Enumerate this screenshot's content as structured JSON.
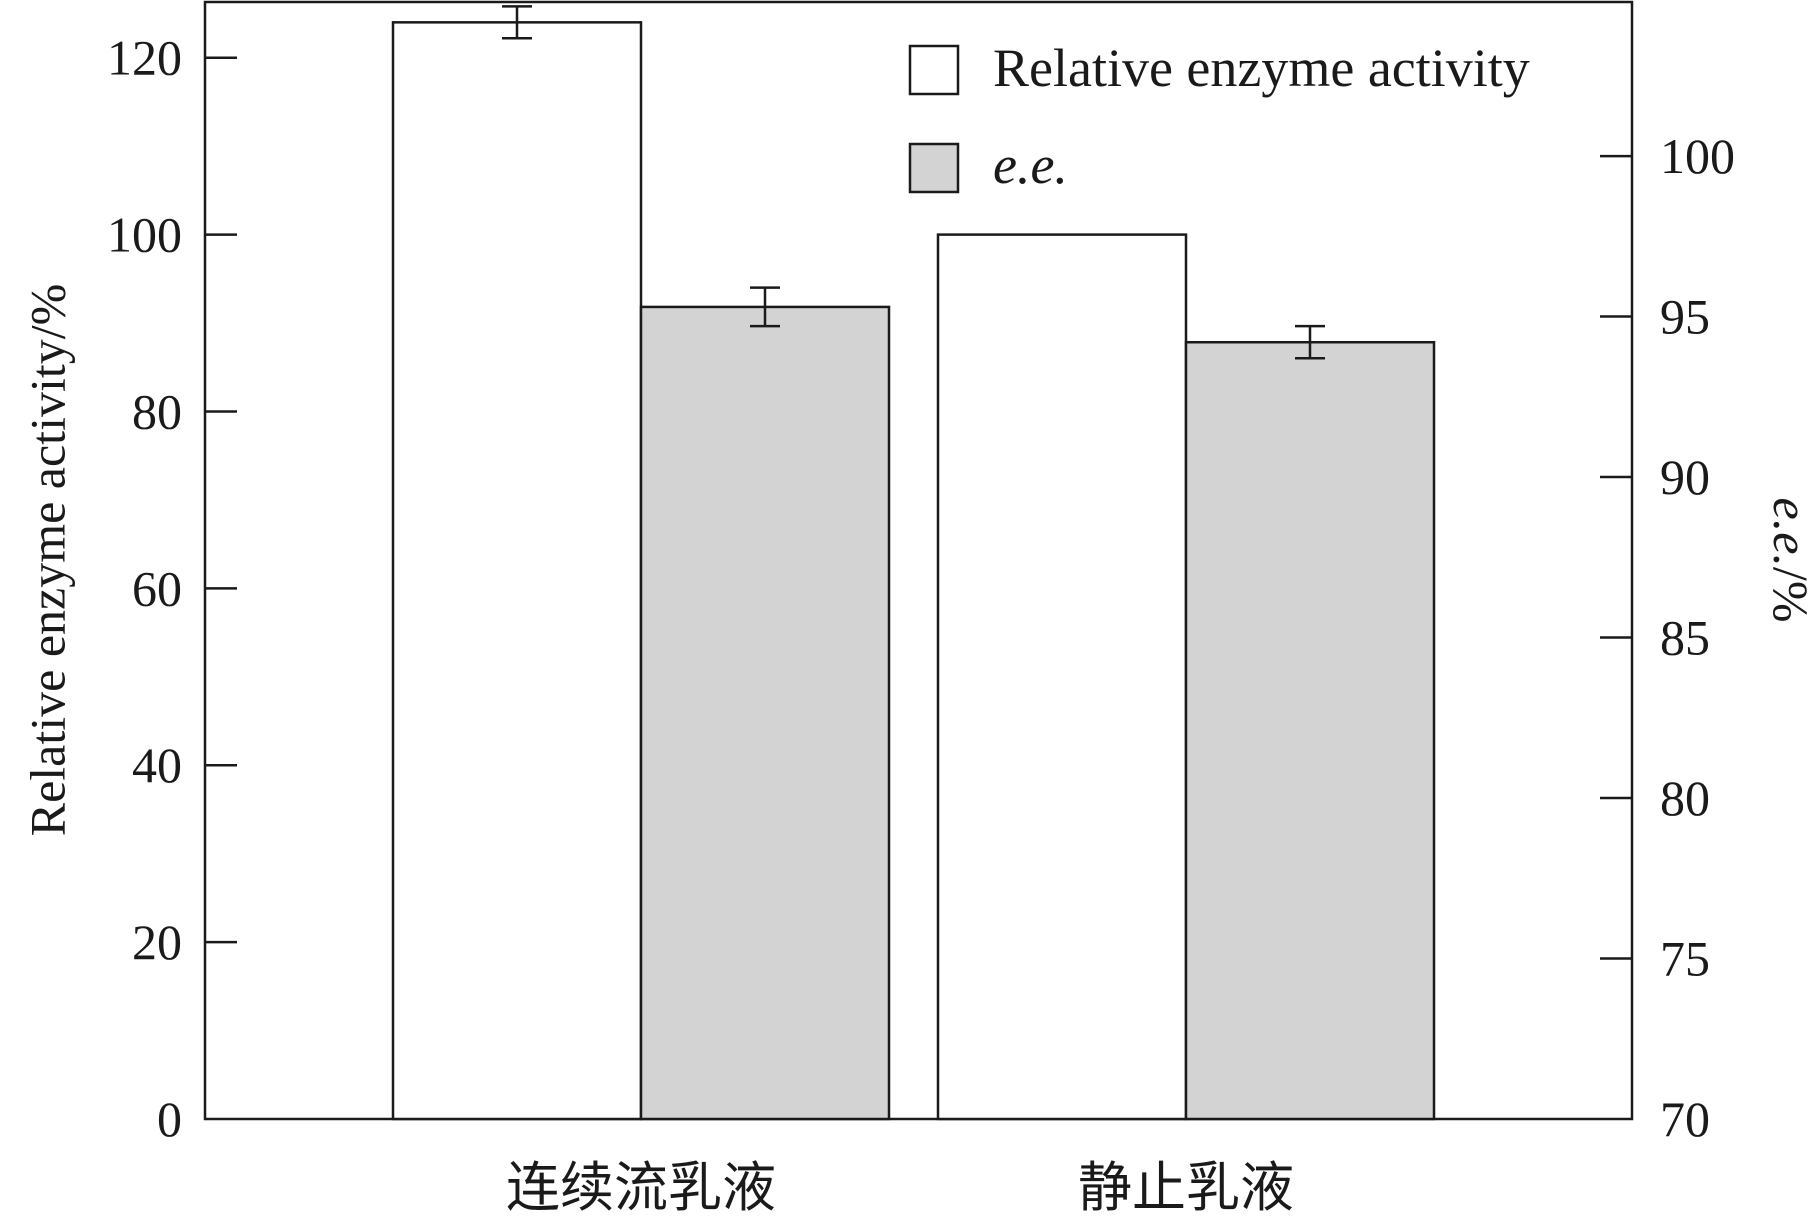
{
  "chart_data": {
    "type": "bar",
    "categories": [
      "连续流乳液",
      "静止乳液"
    ],
    "series": [
      {
        "name": "Relative enzyme activity",
        "axis": "left",
        "values": [
          124,
          100
        ],
        "errors": [
          1.8,
          null
        ],
        "color": "#ffffff"
      },
      {
        "name": "e.e.",
        "axis": "right",
        "values": [
          95.3,
          94.2
        ],
        "errors": [
          0.6,
          0.5
        ],
        "color": "#d4d3d4"
      }
    ],
    "ylabel_left": "Relative enzyme activity/%",
    "ylabel_right": "e.e./%",
    "ylabel_right_parts": {
      "italic": "e.e.",
      "rest": "/%"
    },
    "ylim_left": [
      0,
      120
    ],
    "ylim_left_max_axis": 126.3,
    "yticks_left": [
      "0",
      "20",
      "40",
      "60",
      "80",
      "100",
      "120"
    ],
    "ylim_right": [
      70,
      100
    ],
    "ylim_right_max_axis": 104.8,
    "yticks_right": [
      "70",
      "75",
      "80",
      "85",
      "90",
      "95",
      "100"
    ],
    "grid": false,
    "legend_position": "top-right"
  }
}
